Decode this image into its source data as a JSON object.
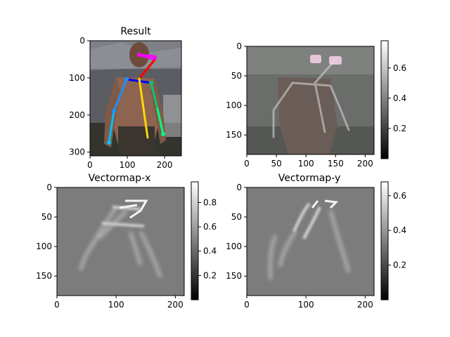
{
  "chart_data": [
    {
      "type": "heatmap",
      "title": "Result",
      "content": "photo with pose skeleton overlay",
      "x_ticks": [
        "0",
        "100",
        "200"
      ],
      "y_ticks": [
        "0",
        "100",
        "200",
        "300"
      ],
      "x_tick_values": [
        0,
        100,
        200
      ],
      "y_tick_values": [
        0,
        100,
        200,
        300
      ],
      "xlim": [
        0,
        245
      ],
      "ylim": [
        0,
        310
      ],
      "colorbar": null,
      "skeleton_colors": [
        "#ff00ff",
        "#ff0000",
        "#0000ff",
        "#1e90ff",
        "#00bfff",
        "#00ff7f",
        "#ffff00",
        "#ffd700"
      ]
    },
    {
      "type": "heatmap",
      "title": "",
      "content": "grayscale pose overlay",
      "x_ticks": [
        "0",
        "50",
        "100",
        "150",
        "200"
      ],
      "y_ticks": [
        "0",
        "50",
        "100",
        "150"
      ],
      "x_tick_values": [
        0,
        50,
        100,
        150,
        200
      ],
      "y_tick_values": [
        0,
        50,
        100,
        150
      ],
      "xlim": [
        0,
        215
      ],
      "ylim": [
        0,
        183
      ],
      "colorbar": {
        "ticks": [
          "0.2",
          "0.4",
          "0.6"
        ],
        "tick_values": [
          0.2,
          0.4,
          0.6
        ],
        "range": [
          0.0,
          0.78
        ]
      }
    },
    {
      "type": "heatmap",
      "title": "Vectormap-x",
      "content": "vector field x component",
      "x_ticks": [
        "0",
        "100",
        "200"
      ],
      "y_ticks": [
        "0",
        "50",
        "100",
        "150"
      ],
      "x_tick_values": [
        0,
        100,
        200
      ],
      "y_tick_values": [
        0,
        50,
        100,
        150
      ],
      "xlim": [
        0,
        215
      ],
      "ylim": [
        0,
        183
      ],
      "colorbar": {
        "ticks": [
          "0.2",
          "0.4",
          "0.6",
          "0.8"
        ],
        "tick_values": [
          0.2,
          0.4,
          0.6,
          0.8
        ],
        "range": [
          0.0,
          0.97
        ]
      }
    },
    {
      "type": "heatmap",
      "title": "Vectormap-y",
      "content": "vector field y component",
      "x_ticks": [
        "0",
        "100",
        "200"
      ],
      "y_ticks": [
        "0",
        "50",
        "100",
        "150"
      ],
      "x_tick_values": [
        0,
        100,
        200
      ],
      "y_tick_values": [
        0,
        50,
        100,
        150
      ],
      "xlim": [
        0,
        215
      ],
      "ylim": [
        0,
        183
      ],
      "colorbar": {
        "ticks": [
          "0.2",
          "0.4",
          "0.6"
        ],
        "tick_values": [
          0.2,
          0.4,
          0.6
        ],
        "range": [
          0.0,
          0.68
        ]
      }
    }
  ]
}
